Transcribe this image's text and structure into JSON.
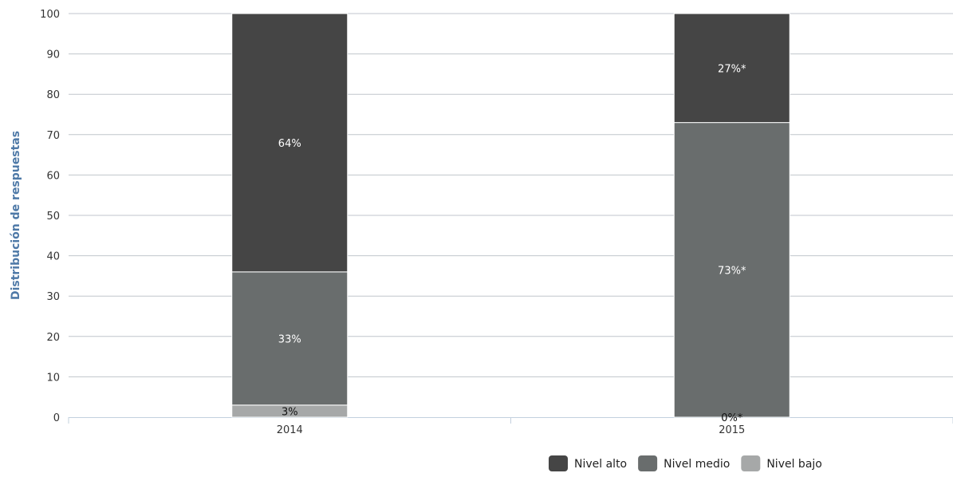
{
  "chart_data": {
    "type": "bar",
    "stacked": true,
    "categories": [
      "2014",
      "2015"
    ],
    "series": [
      {
        "name": "Nivel bajo",
        "values": [
          3,
          0
        ],
        "labels": [
          "3%",
          "0%*"
        ],
        "color": "#a6a8a8",
        "label_color": "#111111"
      },
      {
        "name": "Nivel medio",
        "values": [
          33,
          73
        ],
        "labels": [
          "33%",
          "73%*"
        ],
        "color": "#696d6d",
        "label_color": "#ffffff"
      },
      {
        "name": "Nivel alto",
        "values": [
          64,
          27
        ],
        "labels": [
          "64%",
          "27%*"
        ],
        "color": "#454545",
        "label_color": "#ffffff"
      }
    ],
    "legend_order": [
      "Nivel alto",
      "Nivel medio",
      "Nivel bajo"
    ],
    "title": "",
    "xlabel": "",
    "ylabel": "Distribución de respuestas",
    "ylim": [
      0,
      100
    ],
    "yticks": [
      "0",
      "10",
      "20",
      "30",
      "40",
      "50",
      "60",
      "70",
      "80",
      "90",
      "100"
    ],
    "grid": true,
    "legend_position": "bottom-right",
    "colors": {
      "axis_title": "#4e79a7",
      "grid": "#c0c6cc",
      "axis": "#c3d0de"
    }
  }
}
